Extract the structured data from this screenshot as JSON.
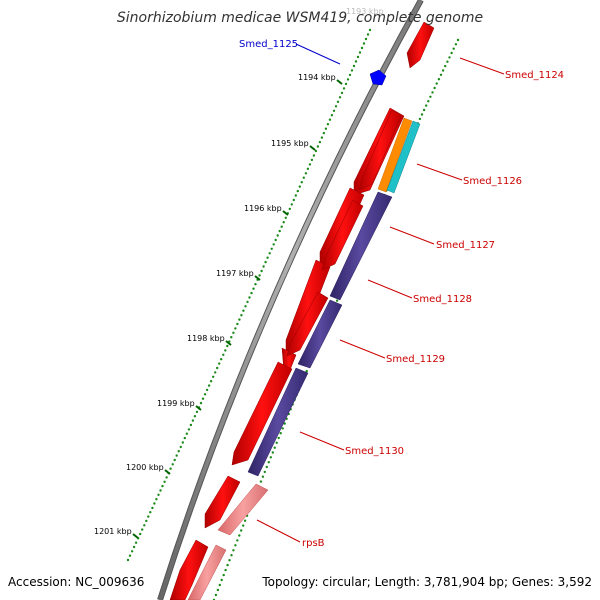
{
  "title": "Sinorhizobium medicae WSM419, complete genome",
  "accession": "Accession: NC_009636",
  "summary": "Topology: circular; Length: 3,781,904 bp; Genes: 3,592",
  "colors": {
    "backbone": "#888888",
    "forward_gene": "#ff0000",
    "reverse_cds": "#4b3c8c",
    "rna": "#f08080",
    "orange_feature": "#ff8c00",
    "cyan_feature": "#20c0c8",
    "blue_feature": "#0000ff",
    "label_red": "#cc0000",
    "label_blue": "#0000cc",
    "tick_green": "#006400"
  },
  "kbp_ticks": [
    {
      "label": "1194 kbp"
    },
    {
      "label": "1195 kbp"
    },
    {
      "label": "1196 kbp"
    },
    {
      "label": "1197 kbp"
    },
    {
      "label": "1198 kbp"
    },
    {
      "label": "1199 kbp"
    },
    {
      "label": "1200 kbp"
    },
    {
      "label": "1201 kbp"
    }
  ],
  "gene_labels": [
    {
      "name": "Smed_1125",
      "color": "#0000cc"
    },
    {
      "name": "Smed_1124",
      "color": "#cc0000"
    },
    {
      "name": "Smed_1126",
      "color": "#cc0000"
    },
    {
      "name": "Smed_1127",
      "color": "#cc0000"
    },
    {
      "name": "Smed_1128",
      "color": "#cc0000"
    },
    {
      "name": "Smed_1129",
      "color": "#cc0000"
    },
    {
      "name": "Smed_1130",
      "color": "#cc0000"
    },
    {
      "name": "rpsB",
      "color": "#cc0000"
    }
  ]
}
